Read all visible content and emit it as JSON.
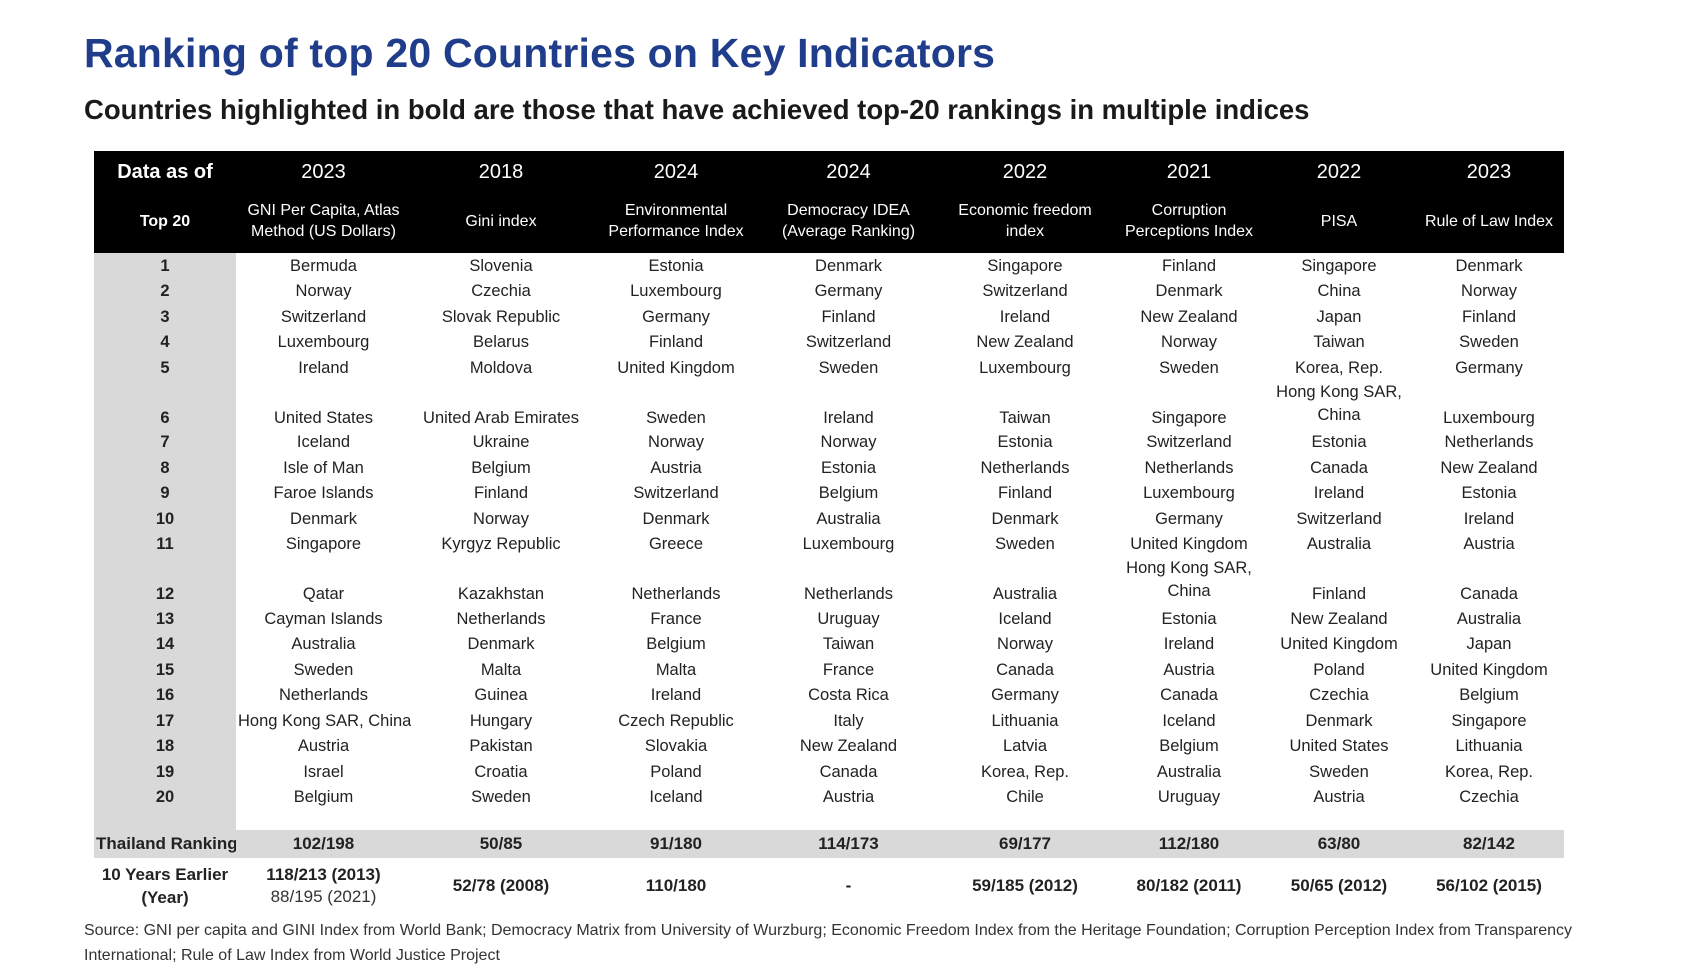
{
  "title": "Ranking of top 20 Countries on Key Indicators",
  "subtitle": "Countries highlighted in bold are those that have achieved top-20 rankings in multiple indices",
  "header": {
    "data_as_of": "Data as of",
    "top20": "Top 20",
    "columns": [
      {
        "year": "2023",
        "label": "GNI Per Capita, Atlas Method (US Dollars)"
      },
      {
        "year": "2018",
        "label": "Gini index"
      },
      {
        "year": "2024",
        "label": "Environmental Performance Index"
      },
      {
        "year": "2024",
        "label": "Democracy IDEA (Average Ranking)"
      },
      {
        "year": "2022",
        "label": "Economic freedom index"
      },
      {
        "year": "2021",
        "label": "Corruption Perceptions Index"
      },
      {
        "year": "2022",
        "label": "PISA"
      },
      {
        "year": "2023",
        "label": "Rule of Law Index"
      }
    ]
  },
  "rows": [
    {
      "rank": "1",
      "cells": [
        {
          "t": "Bermuda",
          "b": false
        },
        {
          "t": "Slovenia",
          "b": false
        },
        {
          "t": "Estonia",
          "b": true
        },
        {
          "t": "Denmark",
          "b": true
        },
        {
          "t": "Singapore",
          "b": true
        },
        {
          "t": "Finland",
          "b": true
        },
        {
          "t": "Singapore",
          "b": true
        },
        {
          "t": "Denmark",
          "b": true
        }
      ]
    },
    {
      "rank": "2",
      "cells": [
        {
          "t": "Norway",
          "b": true
        },
        {
          "t": "Czechia",
          "b": true
        },
        {
          "t": "Luxembourg",
          "b": true
        },
        {
          "t": "Germany",
          "b": true
        },
        {
          "t": "Switzerland",
          "b": true
        },
        {
          "t": "Denmark",
          "b": true
        },
        {
          "t": "China",
          "b": false
        },
        {
          "t": "Norway",
          "b": true
        }
      ]
    },
    {
      "rank": "3",
      "cells": [
        {
          "t": "Switzerland",
          "b": true
        },
        {
          "t": "Slovak Republic",
          "b": false
        },
        {
          "t": "Germany",
          "b": true
        },
        {
          "t": "Finland",
          "b": true
        },
        {
          "t": "Ireland",
          "b": true
        },
        {
          "t": "New Zealand",
          "b": true
        },
        {
          "t": "Japan",
          "b": true
        },
        {
          "t": "Finland",
          "b": true
        }
      ]
    },
    {
      "rank": "4",
      "cells": [
        {
          "t": "Luxembourg",
          "b": true
        },
        {
          "t": "Belarus",
          "b": false
        },
        {
          "t": "Finland",
          "b": true
        },
        {
          "t": "Switzerland",
          "b": true
        },
        {
          "t": "New Zealand",
          "b": true
        },
        {
          "t": "Norway",
          "b": true
        },
        {
          "t": "Taiwan",
          "b": true
        },
        {
          "t": "Sweden",
          "b": true
        }
      ]
    },
    {
      "rank": "5",
      "cells": [
        {
          "t": "Ireland",
          "b": true
        },
        {
          "t": "Moldova",
          "b": false
        },
        {
          "t": "United Kingdom",
          "b": true
        },
        {
          "t": "Sweden",
          "b": true
        },
        {
          "t": "Luxembourg",
          "b": true
        },
        {
          "t": "Sweden",
          "b": true
        },
        {
          "t": "Korea, Rep.",
          "b": true
        },
        {
          "t": "Germany",
          "b": true
        }
      ]
    },
    {
      "rank": "6",
      "tall": true,
      "cells": [
        {
          "t": "United States",
          "b": true
        },
        {
          "t": "United Arab Emirates",
          "b": false
        },
        {
          "t": "Sweden",
          "b": true
        },
        {
          "t": "Ireland",
          "b": true
        },
        {
          "t": "Taiwan",
          "b": true
        },
        {
          "t": "Singapore",
          "b": true
        },
        {
          "t": "Hong Kong SAR, China",
          "b": true
        },
        {
          "t": "Luxembourg",
          "b": true
        }
      ]
    },
    {
      "rank": "7",
      "cells": [
        {
          "t": "Iceland",
          "b": true
        },
        {
          "t": "Ukraine",
          "b": false
        },
        {
          "t": "Norway",
          "b": true
        },
        {
          "t": "Norway",
          "b": true
        },
        {
          "t": "Estonia",
          "b": true
        },
        {
          "t": "Switzerland",
          "b": true
        },
        {
          "t": "Estonia",
          "b": true
        },
        {
          "t": "Netherlands",
          "b": true
        }
      ]
    },
    {
      "rank": "8",
      "cells": [
        {
          "t": "Isle of Man",
          "b": false
        },
        {
          "t": "Belgium",
          "b": true
        },
        {
          "t": "Austria",
          "b": true
        },
        {
          "t": "Estonia",
          "b": true
        },
        {
          "t": "Netherlands",
          "b": true
        },
        {
          "t": "Netherlands",
          "b": true
        },
        {
          "t": "Canada",
          "b": true
        },
        {
          "t": "New Zealand",
          "b": true
        }
      ]
    },
    {
      "rank": "9",
      "cells": [
        {
          "t": "Faroe Islands",
          "b": false
        },
        {
          "t": "Finland",
          "b": true
        },
        {
          "t": "Switzerland",
          "b": true
        },
        {
          "t": "Belgium",
          "b": true
        },
        {
          "t": "Finland",
          "b": true
        },
        {
          "t": "Luxembourg",
          "b": true
        },
        {
          "t": "Ireland",
          "b": true
        },
        {
          "t": "Estonia",
          "b": true
        }
      ]
    },
    {
      "rank": "10",
      "cells": [
        {
          "t": "Denmark",
          "b": true
        },
        {
          "t": "Norway",
          "b": true
        },
        {
          "t": "Denmark",
          "b": true
        },
        {
          "t": "Australia",
          "b": true
        },
        {
          "t": "Denmark",
          "b": true
        },
        {
          "t": "Germany",
          "b": true
        },
        {
          "t": "Switzerland",
          "b": true
        },
        {
          "t": "Ireland",
          "b": true
        }
      ]
    },
    {
      "rank": "11",
      "cells": [
        {
          "t": "Singapore",
          "b": true
        },
        {
          "t": "Kyrgyz Republic",
          "b": false
        },
        {
          "t": "Greece",
          "b": true
        },
        {
          "t": "Luxembourg",
          "b": true
        },
        {
          "t": "Sweden",
          "b": true
        },
        {
          "t": "United Kingdom",
          "b": true
        },
        {
          "t": "Australia",
          "b": true
        },
        {
          "t": "Austria",
          "b": true
        }
      ]
    },
    {
      "rank": "12",
      "tall": true,
      "cells": [
        {
          "t": "Qatar",
          "b": false
        },
        {
          "t": "Kazakhstan",
          "b": false
        },
        {
          "t": "Netherlands",
          "b": true
        },
        {
          "t": "Netherlands",
          "b": true
        },
        {
          "t": "Australia",
          "b": true
        },
        {
          "t": "Hong Kong SAR, China",
          "b": true
        },
        {
          "t": "Finland",
          "b": true
        },
        {
          "t": "Canada",
          "b": true
        }
      ]
    },
    {
      "rank": "13",
      "cells": [
        {
          "t": "Cayman Islands",
          "b": false
        },
        {
          "t": "Netherlands",
          "b": true
        },
        {
          "t": "France",
          "b": true
        },
        {
          "t": "Uruguay",
          "b": true
        },
        {
          "t": "Iceland",
          "b": true
        },
        {
          "t": "Estonia",
          "b": true
        },
        {
          "t": "New Zealand",
          "b": true
        },
        {
          "t": "Australia",
          "b": true
        }
      ]
    },
    {
      "rank": "14",
      "cells": [
        {
          "t": "Australia",
          "b": true
        },
        {
          "t": "Denmark",
          "b": true
        },
        {
          "t": "Belgium",
          "b": true
        },
        {
          "t": "Taiwan",
          "b": true
        },
        {
          "t": "Norway",
          "b": true
        },
        {
          "t": "Ireland",
          "b": true
        },
        {
          "t": "United Kingdom",
          "b": true
        },
        {
          "t": "Japan",
          "b": true
        }
      ]
    },
    {
      "rank": "15",
      "cells": [
        {
          "t": "Sweden",
          "b": true
        },
        {
          "t": "Malta",
          "b": false
        },
        {
          "t": "Malta",
          "b": true
        },
        {
          "t": "France",
          "b": true
        },
        {
          "t": "Canada",
          "b": true
        },
        {
          "t": "Austria",
          "b": true
        },
        {
          "t": "Poland",
          "b": false
        },
        {
          "t": "United Kingdom",
          "b": true
        }
      ]
    },
    {
      "rank": "16",
      "cells": [
        {
          "t": "Netherlands",
          "b": true
        },
        {
          "t": "Guinea",
          "b": false
        },
        {
          "t": "Ireland",
          "b": true
        },
        {
          "t": "Costa Rica",
          "b": false
        },
        {
          "t": "Germany",
          "b": true
        },
        {
          "t": "Canada",
          "b": true
        },
        {
          "t": "Czechia",
          "b": true
        },
        {
          "t": "Belgium",
          "b": true
        }
      ]
    },
    {
      "rank": "17",
      "cells": [
        {
          "t": "Hong Kong SAR, China",
          "b": true
        },
        {
          "t": "Hungary",
          "b": false
        },
        {
          "t": "Czech Republic",
          "b": true
        },
        {
          "t": "Italy",
          "b": false
        },
        {
          "t": "Lithuania",
          "b": true
        },
        {
          "t": "Iceland",
          "b": true
        },
        {
          "t": "Denmark",
          "b": true
        },
        {
          "t": "Singapore",
          "b": true
        }
      ]
    },
    {
      "rank": "18",
      "cells": [
        {
          "t": "Austria",
          "b": true
        },
        {
          "t": "Pakistan",
          "b": false
        },
        {
          "t": "Slovakia",
          "b": true
        },
        {
          "t": "New Zealand",
          "b": true
        },
        {
          "t": "Latvia",
          "b": false
        },
        {
          "t": "Belgium",
          "b": true
        },
        {
          "t": "United States",
          "b": true
        },
        {
          "t": "Lithuania",
          "b": true
        }
      ]
    },
    {
      "rank": "19",
      "cells": [
        {
          "t": "Israel",
          "b": false
        },
        {
          "t": "Croatia",
          "b": false
        },
        {
          "t": "Poland",
          "b": true
        },
        {
          "t": "Canada",
          "b": true
        },
        {
          "t": "Korea, Rep.",
          "b": true
        },
        {
          "t": "Australia",
          "b": true
        },
        {
          "t": "Sweden",
          "b": true
        },
        {
          "t": "Korea, Rep.",
          "b": true
        }
      ]
    },
    {
      "rank": "20",
      "cells": [
        {
          "t": "Belgium",
          "b": true
        },
        {
          "t": "Sweden",
          "b": true
        },
        {
          "t": "Iceland",
          "b": true
        },
        {
          "t": "Austria",
          "b": true
        },
        {
          "t": "Chile",
          "b": false
        },
        {
          "t": "Uruguay",
          "b": true
        },
        {
          "t": "Austria",
          "b": true
        },
        {
          "t": "Czechia",
          "b": true
        }
      ]
    }
  ],
  "thailand": {
    "label": "Thailand Ranking",
    "values": [
      "102/198",
      "50/85",
      "91/180",
      "114/173",
      "69/177",
      "112/180",
      "63/80",
      "82/142"
    ]
  },
  "earlier": {
    "label": "10 Years Earlier (Year)",
    "values": [
      "118/213 (2013)",
      "52/78 (2008)",
      "110/180",
      "-",
      "59/185 (2012)",
      "80/182 (2011)",
      "50/65 (2012)",
      "56/102 (2015)"
    ],
    "gni_extra": "88/195 (2021)"
  },
  "source": "Source: GNI per capita and GINI Index from World Bank; Democracy Matrix from University of Wurzburg; Economic Freedom Index from the Heritage Foundation; Corruption Perception Index from Transparency International; Rule of Law Index from World Justice Project",
  "colors": {
    "bold_country": "#3e8ed3",
    "title": "#1f3d8a",
    "header_bg": "#000000",
    "rank_bg": "#d9d9d9"
  }
}
